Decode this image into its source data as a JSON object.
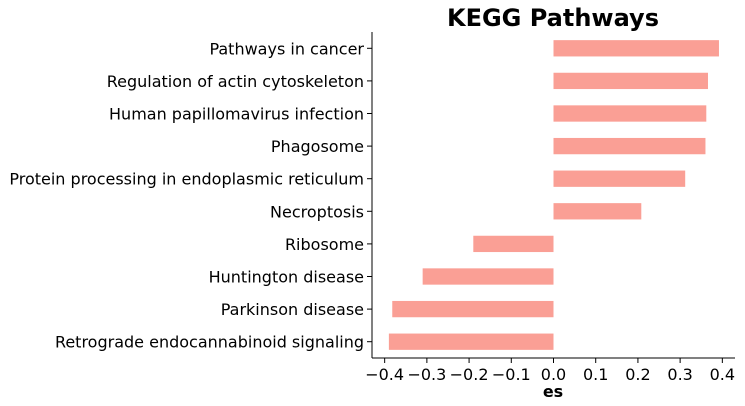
{
  "chart_data": {
    "type": "bar",
    "orientation": "horizontal",
    "title": "KEGG Pathways",
    "xlabel": "es",
    "ylabel": "",
    "xlim": [
      -0.43,
      0.43
    ],
    "xticks": [
      -0.4,
      -0.3,
      -0.2,
      -0.1,
      0.0,
      0.1,
      0.2,
      0.3,
      0.4
    ],
    "xtick_labels": [
      "−0.4",
      "−0.3",
      "−0.2",
      "−0.1",
      "0.0",
      "0.1",
      "0.2",
      "0.3",
      "0.4"
    ],
    "categories": [
      "Pathways in cancer",
      "Regulation of actin cytoskeleton",
      "Human papillomavirus infection",
      "Phagosome",
      "Protein processing in endoplasmic reticulum",
      "Necroptosis",
      "Ribosome",
      "Huntington disease",
      "Parkinson disease",
      "Retrograde endocannabinoid signaling"
    ],
    "values": [
      0.392,
      0.366,
      0.362,
      0.36,
      0.312,
      0.208,
      -0.19,
      -0.31,
      -0.382,
      -0.39
    ],
    "bar_color": "#fa9f95",
    "grid": false
  }
}
